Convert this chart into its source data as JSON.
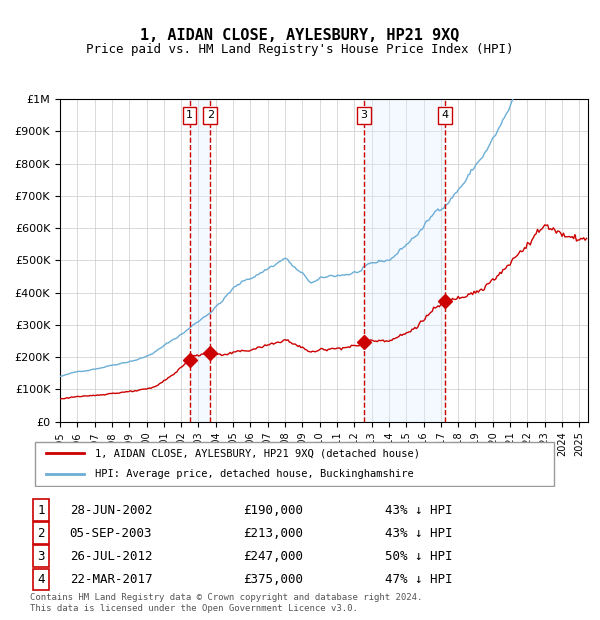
{
  "title": "1, AIDAN CLOSE, AYLESBURY, HP21 9XQ",
  "subtitle": "Price paid vs. HM Land Registry's House Price Index (HPI)",
  "footer1": "Contains HM Land Registry data © Crown copyright and database right 2024.",
  "footer2": "This data is licensed under the Open Government Licence v3.0.",
  "legend_line1": "1, AIDAN CLOSE, AYLESBURY, HP21 9XQ (detached house)",
  "legend_line2": "HPI: Average price, detached house, Buckinghamshire",
  "sale_labels": [
    "1",
    "2",
    "3",
    "4"
  ],
  "sale_dates_label": [
    "28-JUN-2002",
    "05-SEP-2003",
    "26-JUL-2012",
    "22-MAR-2017"
  ],
  "sale_prices_label": [
    "£190,000",
    "£213,000",
    "£247,000",
    "£375,000"
  ],
  "sale_pct_label": [
    "43% ↓ HPI",
    "43% ↓ HPI",
    "50% ↓ HPI",
    "47% ↓ HPI"
  ],
  "sale_years": [
    2002.49,
    2003.68,
    2012.57,
    2017.22
  ],
  "sale_prices": [
    190000,
    213000,
    247000,
    375000
  ],
  "hpi_color": "#6baed6",
  "hpi_fill_color": "#ddeeff",
  "price_color": "#cc0000",
  "sale_marker_color": "#cc0000",
  "vline_color": "#cc0000",
  "shade_color": "#ddeeff",
  "grid_color": "#cccccc",
  "ylabel_color": "#333333",
  "title_color": "#000000",
  "ylim": [
    0,
    1000000
  ],
  "xlim_start": 1995,
  "xlim_end": 2025.5
}
